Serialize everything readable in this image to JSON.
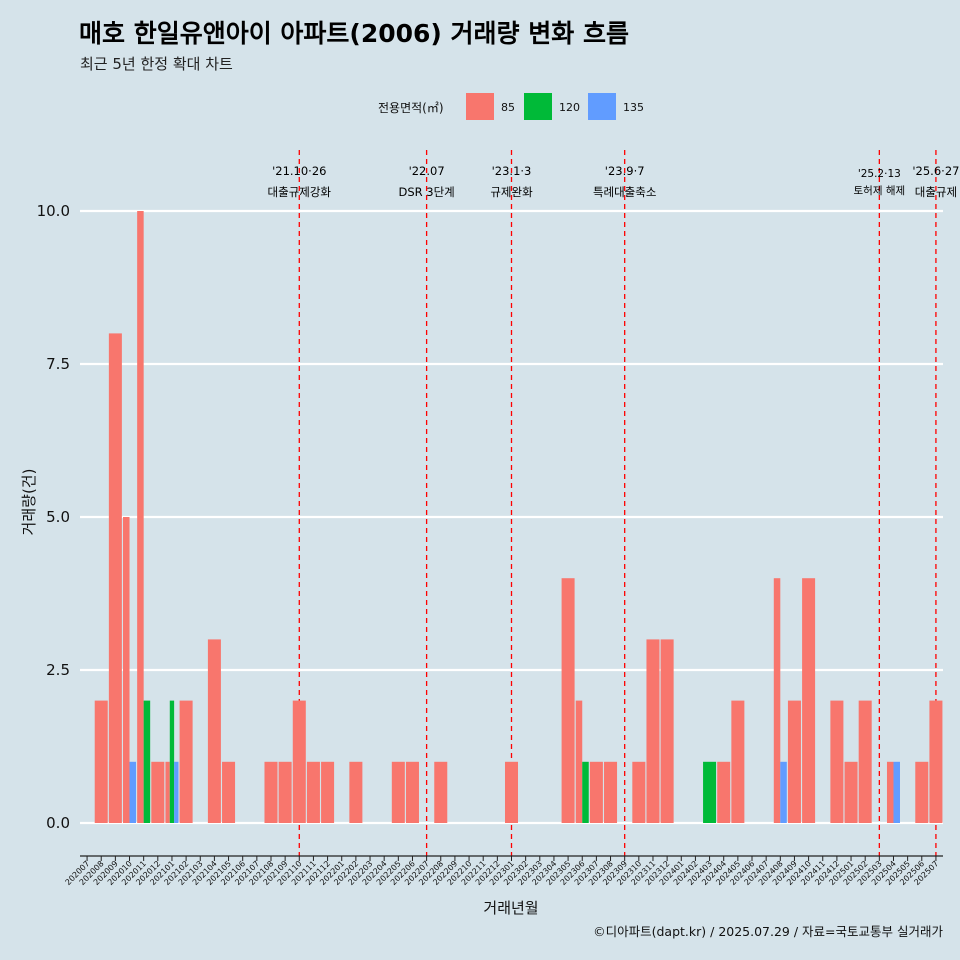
{
  "title": "매호 한일유앤아이 아파트(2006) 거래량 변화 흐름",
  "subtitle": "최근 5년 한정 확대 차트",
  "caption": "©디아파트(dapt.kr) / 2025.07.29 / 자료=국토교통부 실거래가",
  "chart_data": {
    "type": "bar",
    "xlabel": "거래년월",
    "ylabel": "거래량(건)",
    "ylim": [
      0,
      10
    ],
    "yticks": [
      "0.0",
      "2.5",
      "5.0",
      "7.5",
      "10.0"
    ],
    "ytick_values": [
      0,
      2.5,
      5,
      7.5,
      10
    ],
    "grid": "horizontal",
    "legend": {
      "title": "전용면적(㎡)",
      "position": "top",
      "entries": [
        {
          "label": "85",
          "color": "#f8766d"
        },
        {
          "label": "120",
          "color": "#00ba38"
        },
        {
          "label": "135",
          "color": "#619cff"
        }
      ]
    },
    "categories": [
      "202007",
      "202008",
      "202009",
      "202010",
      "202011",
      "202012",
      "202101",
      "202102",
      "202103",
      "202104",
      "202105",
      "202106",
      "202107",
      "202108",
      "202109",
      "202110",
      "202111",
      "202112",
      "202201",
      "202202",
      "202203",
      "202204",
      "202205",
      "202206",
      "202207",
      "202208",
      "202209",
      "202210",
      "202211",
      "202212",
      "202301",
      "202302",
      "202303",
      "202304",
      "202305",
      "202306",
      "202307",
      "202308",
      "202309",
      "202310",
      "202311",
      "202312",
      "202401",
      "202402",
      "202403",
      "202404",
      "202405",
      "202406",
      "202407",
      "202408",
      "202409",
      "202410",
      "202411",
      "202412",
      "202501",
      "202502",
      "202503",
      "202504",
      "202505",
      "202506",
      "202507"
    ],
    "series": [
      {
        "name": "85",
        "color": "#f8766d",
        "values": [
          0,
          2,
          8,
          5,
          10,
          1,
          1,
          2,
          0,
          3,
          1,
          0,
          0,
          1,
          1,
          2,
          1,
          1,
          0,
          1,
          0,
          0,
          1,
          1,
          0,
          1,
          0,
          0,
          0,
          0,
          1,
          0,
          0,
          0,
          4,
          2,
          1,
          1,
          0,
          1,
          3,
          3,
          0,
          0,
          0,
          1,
          2,
          0,
          0,
          4,
          2,
          4,
          0,
          2,
          1,
          2,
          0,
          1,
          0,
          1,
          2
        ]
      },
      {
        "name": "120",
        "color": "#00ba38",
        "values": [
          0,
          0,
          0,
          0,
          2,
          0,
          2,
          0,
          0,
          0,
          0,
          0,
          0,
          0,
          0,
          0,
          0,
          0,
          0,
          0,
          0,
          0,
          0,
          0,
          0,
          0,
          0,
          0,
          0,
          0,
          0,
          0,
          0,
          0,
          0,
          1,
          0,
          0,
          0,
          0,
          0,
          0,
          0,
          0,
          1,
          0,
          0,
          0,
          0,
          0,
          0,
          0,
          0,
          0,
          0,
          0,
          0,
          0,
          0,
          0,
          0
        ]
      },
      {
        "name": "135",
        "color": "#619cff",
        "values": [
          0,
          0,
          0,
          1,
          0,
          0,
          1,
          0,
          0,
          0,
          0,
          0,
          0,
          0,
          0,
          0,
          0,
          0,
          0,
          0,
          0,
          0,
          0,
          0,
          0,
          0,
          0,
          0,
          0,
          0,
          0,
          0,
          0,
          0,
          0,
          0,
          0,
          0,
          0,
          0,
          0,
          0,
          0,
          0,
          0,
          0,
          0,
          0,
          0,
          1,
          0,
          0,
          0,
          0,
          0,
          0,
          0,
          1,
          0,
          0,
          0
        ]
      }
    ],
    "annotations": [
      {
        "x": "202110",
        "date": "'21.10·26",
        "label": "대출규제강화"
      },
      {
        "x": "202207",
        "date": "'22.07",
        "label": "DSR 3단계"
      },
      {
        "x": "202301",
        "date": "'23.1·3",
        "label": "규제완화"
      },
      {
        "x": "202309",
        "date": "'23.9·7",
        "label": "특례대출축소"
      },
      {
        "x": "202503",
        "date": "'25.2·13",
        "label": "토허제 해제"
      },
      {
        "x": "202507",
        "date": "'25.6·27",
        "label": "대출규제"
      }
    ]
  }
}
